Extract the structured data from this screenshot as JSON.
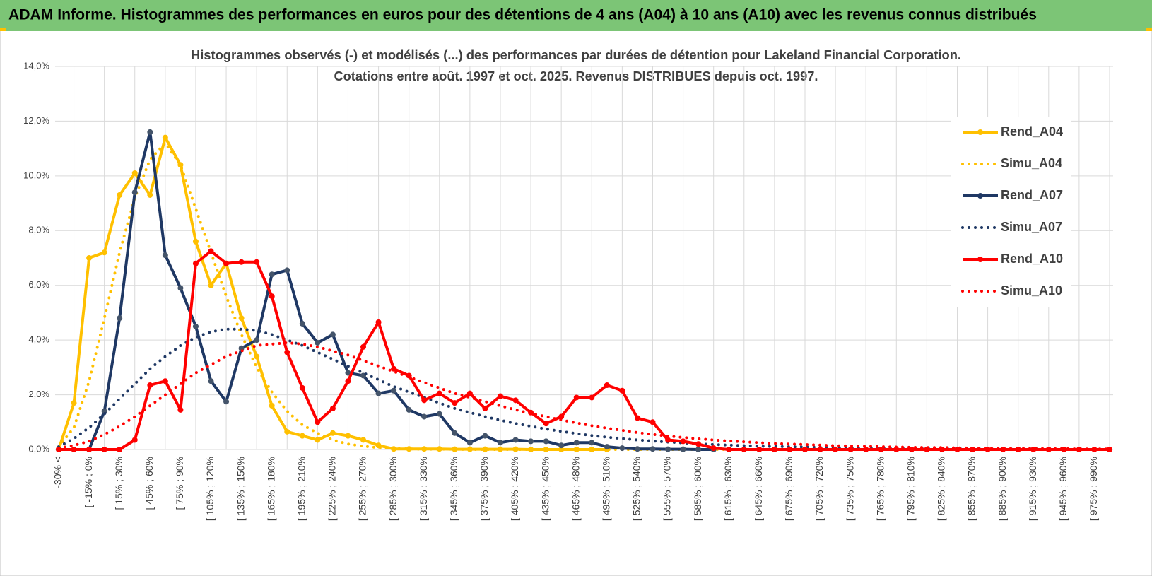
{
  "header": "ADAM Informe. Histogrammes des performances en euros pour des détentions de 4 ans (A04) à 10 ans (A10) avec les revenus connus distribués",
  "chart_data": {
    "type": "line",
    "title_lines": [
      "Histogrammes observés (-) et modélisés (...) des performances par durées de détention pour Lakeland Financial Corporation.",
      "Cotations entre août. 1997 et oct. 2025.  Revenus DISTRIBUES depuis oct. 1997."
    ],
    "categories": [
      "-30% <",
      null,
      "[ -15% ; 0%",
      null,
      "[ 15% ; 30%",
      null,
      "[ 45% ; 60%",
      null,
      "[ 75% ; 90%",
      null,
      "[ 105% ; 120%",
      null,
      "[ 135% ; 150%",
      null,
      "[ 165% ; 180%",
      null,
      "[ 195% ; 210%",
      null,
      "[ 225% ; 240%",
      null,
      "[ 255% ; 270%",
      null,
      "[ 285% ; 300%",
      null,
      "[ 315% ; 330%",
      null,
      "[ 345% ; 360%",
      null,
      "[ 375% ; 390%",
      null,
      "[ 405% ; 420%",
      null,
      "[ 435% ; 450%",
      null,
      "[ 465% ; 480%",
      null,
      "[ 495% ; 510%",
      null,
      "[ 525% ; 540%",
      null,
      "[ 555% ; 570%",
      null,
      "[ 585% ; 600%",
      null,
      "[ 615% ; 630%",
      null,
      "[ 645% ; 660%",
      null,
      "[ 675% ; 690%",
      null,
      "[ 705% ; 720%",
      null,
      "[ 735% ; 750%",
      null,
      "[ 765% ; 780%",
      null,
      "[ 795% ; 810%",
      null,
      "[ 825% ; 840%",
      null,
      "[ 855% ; 870%",
      null,
      "[ 885% ; 900%",
      null,
      "[ 915% ; 930%",
      null,
      "[ 945% ; 960%",
      null,
      "[ 975% ; 990%",
      null
    ],
    "ylim": [
      0,
      14
    ],
    "yticks": [
      {
        "value": 0,
        "label": "0,0%"
      },
      {
        "value": 2,
        "label": "2,0%"
      },
      {
        "value": 4,
        "label": "4,0%"
      },
      {
        "value": 6,
        "label": "6,0%"
      },
      {
        "value": 8,
        "label": "8,0%"
      },
      {
        "value": 10,
        "label": "10,0%"
      },
      {
        "value": 12,
        "label": "12,0%"
      },
      {
        "value": 14,
        "label": "14,0%"
      }
    ],
    "grid": true,
    "legend": "right",
    "series": [
      {
        "name": "Rend_A04",
        "color": "#ffc000",
        "style": "solid",
        "markers": true,
        "values": [
          0,
          1.7,
          7.0,
          7.2,
          9.3,
          10.1,
          9.3,
          11.4,
          10.4,
          7.6,
          6.0,
          6.8,
          4.8,
          3.4,
          1.6,
          0.65,
          0.5,
          0.35,
          0.6,
          0.5,
          0.35,
          0.15,
          0.02,
          0.02,
          0.02,
          0.02,
          0.01,
          0.01,
          0.01,
          0.01,
          0.01,
          0,
          0,
          0,
          0,
          0,
          0,
          null,
          null,
          null,
          null,
          null,
          null,
          null,
          null,
          null,
          null,
          null,
          null,
          null,
          null,
          null,
          null,
          null,
          null,
          null,
          null,
          null,
          null,
          null,
          null,
          null,
          null,
          null,
          null,
          null,
          null,
          null,
          null,
          null
        ]
      },
      {
        "name": "Simu_A04",
        "color": "#ffc000",
        "style": "dotted",
        "markers": false,
        "values": [
          0.1,
          0.8,
          2.5,
          4.8,
          7.2,
          9.2,
          10.6,
          11.2,
          10.4,
          8.8,
          7.2,
          5.6,
          4.2,
          3.0,
          2.1,
          1.4,
          0.9,
          0.6,
          0.35,
          0.2,
          0.12,
          0.07,
          0.04,
          0.02,
          0.01,
          0.01,
          0.01,
          0,
          0,
          0,
          0,
          0,
          0,
          0,
          0,
          0,
          0,
          0,
          0,
          0,
          0,
          0,
          0,
          0,
          0,
          0,
          0,
          0,
          0,
          0,
          0,
          0,
          0,
          0,
          0,
          0,
          0,
          0,
          0,
          0,
          0,
          0,
          0,
          0,
          0,
          0,
          0,
          0,
          0,
          0
        ]
      },
      {
        "name": "Rend_A07",
        "color": "#1f3864",
        "style": "solid",
        "markers": true,
        "values": [
          0,
          0,
          0,
          1.4,
          4.8,
          9.4,
          11.6,
          7.1,
          5.9,
          4.5,
          2.5,
          1.75,
          3.7,
          4.0,
          6.4,
          6.55,
          4.6,
          3.9,
          4.2,
          2.8,
          2.7,
          2.05,
          2.15,
          1.45,
          1.2,
          1.3,
          0.6,
          0.25,
          0.5,
          0.25,
          0.35,
          0.3,
          0.3,
          0.15,
          0.25,
          0.25,
          0.1,
          0.05,
          0.02,
          0.02,
          0.01,
          0.01,
          0,
          0,
          null,
          null,
          null,
          null,
          null,
          null,
          null,
          null,
          null,
          null,
          null,
          null,
          null,
          null,
          null,
          null,
          null,
          null,
          null,
          null,
          null,
          null,
          null,
          null,
          null,
          null
        ]
      },
      {
        "name": "Simu_A07",
        "color": "#1f3864",
        "style": "dotted",
        "markers": false,
        "values": [
          0.1,
          0.4,
          0.8,
          1.3,
          1.85,
          2.4,
          2.95,
          3.4,
          3.8,
          4.1,
          4.3,
          4.4,
          4.4,
          4.35,
          4.2,
          4.0,
          3.8,
          3.55,
          3.3,
          3.05,
          2.8,
          2.55,
          2.3,
          2.1,
          1.9,
          1.7,
          1.5,
          1.35,
          1.2,
          1.07,
          0.95,
          0.85,
          0.75,
          0.66,
          0.58,
          0.51,
          0.45,
          0.4,
          0.35,
          0.31,
          0.27,
          0.24,
          0.21,
          0.18,
          0.16,
          0.14,
          0.12,
          0.11,
          0.1,
          0.09,
          0.08,
          0.07,
          0.06,
          0.06,
          0.05,
          0.05,
          0.04,
          0.04,
          0.03,
          0.03,
          0.03,
          0.02,
          0.02,
          0.02,
          0.02,
          0.01,
          0.01,
          0.01,
          0.01,
          0.01
        ]
      },
      {
        "name": "Rend_A10",
        "color": "#ff0000",
        "style": "solid",
        "markers": true,
        "values": [
          0,
          0,
          0,
          0,
          0,
          0.35,
          2.35,
          2.5,
          1.45,
          6.8,
          7.25,
          6.8,
          6.85,
          6.85,
          5.6,
          3.55,
          2.25,
          1.0,
          1.5,
          2.5,
          3.75,
          4.65,
          2.95,
          2.7,
          1.8,
          2.05,
          1.7,
          2.05,
          1.5,
          1.95,
          1.8,
          1.35,
          0.95,
          1.2,
          1.9,
          1.9,
          2.35,
          2.15,
          1.15,
          1.0,
          0.35,
          0.3,
          0.2,
          0.05,
          0,
          0,
          0,
          0,
          0,
          0,
          0,
          0,
          0,
          0,
          0,
          0,
          0,
          0,
          0,
          0,
          0,
          0,
          0,
          0,
          0,
          0,
          0,
          0,
          0,
          0
        ]
      },
      {
        "name": "Simu_A10",
        "color": "#ff0000",
        "style": "dotted",
        "markers": false,
        "values": [
          0.05,
          0.15,
          0.3,
          0.55,
          0.85,
          1.2,
          1.6,
          2.0,
          2.4,
          2.8,
          3.1,
          3.4,
          3.6,
          3.8,
          3.85,
          3.9,
          3.85,
          3.75,
          3.6,
          3.45,
          3.25,
          3.05,
          2.85,
          2.65,
          2.45,
          2.25,
          2.05,
          1.9,
          1.75,
          1.6,
          1.45,
          1.32,
          1.2,
          1.08,
          0.97,
          0.87,
          0.78,
          0.7,
          0.62,
          0.55,
          0.49,
          0.44,
          0.39,
          0.35,
          0.31,
          0.28,
          0.25,
          0.22,
          0.2,
          0.18,
          0.16,
          0.14,
          0.13,
          0.12,
          0.1,
          0.09,
          0.08,
          0.07,
          0.07,
          0.06,
          0.05,
          0.05,
          0.04,
          0.04,
          0.03,
          0.03,
          0.03,
          0.02,
          0.02,
          0.02
        ]
      }
    ]
  }
}
